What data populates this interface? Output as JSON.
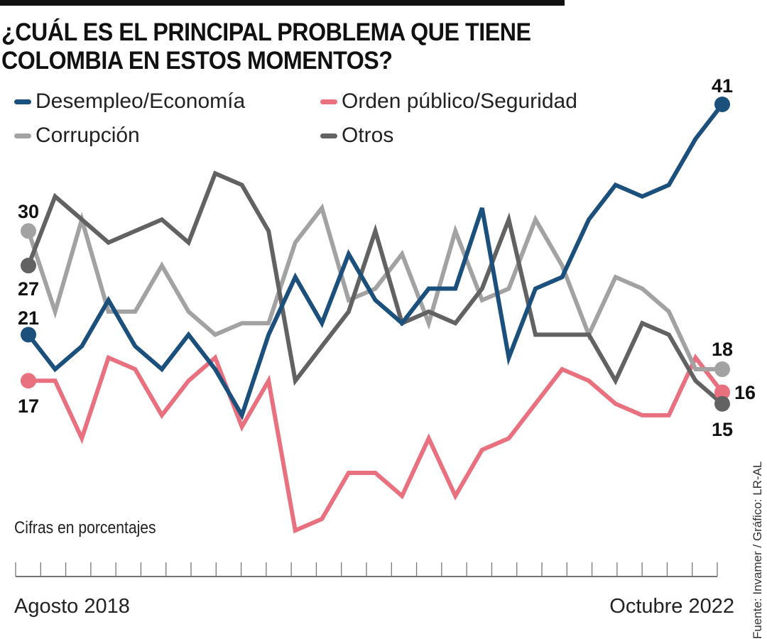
{
  "title_lines": [
    "¿CUÁL ES EL PRINCIPAL PROBLEMA QUE TIENE",
    "COLOMBIA EN ESTOS MOMENTOS?"
  ],
  "note": "Cifras en porcentajes",
  "source": "Fuente: Invamer / Gráfico: LR-AL",
  "chart_data": {
    "type": "line",
    "title": "¿CUÁL ES EL PRINCIPAL PROBLEMA QUE TIENE COLOMBIA EN ESTOS MOMENTOS?",
    "xlabel": "",
    "ylabel": "Cifras en porcentajes",
    "x_start_label": "Agosto 2018",
    "x_end_label": "Octubre 2022",
    "n_points": 27,
    "n_ticks": 29,
    "ylim": [
      0,
      45
    ],
    "grid": false,
    "legend_position": "top-left",
    "series": [
      {
        "name": "Desempleo/Economía",
        "color": "#1b4f7c",
        "values": [
          21,
          18,
          20,
          24,
          20,
          18,
          21,
          18,
          14,
          21,
          26,
          22,
          28,
          24,
          22,
          25,
          25,
          32,
          19,
          25,
          26,
          31,
          34,
          33,
          34,
          38,
          41
        ],
        "start_label": "21",
        "end_label": "41"
      },
      {
        "name": "Orden público/Seguridad",
        "color": "#e8707f",
        "values": [
          17,
          17,
          12,
          19,
          18,
          14,
          17,
          19,
          13,
          17,
          4,
          5,
          9,
          9,
          7,
          12,
          7,
          11,
          12,
          15,
          18,
          17,
          15,
          14,
          14,
          19,
          16
        ],
        "start_label": "17",
        "end_label": "16"
      },
      {
        "name": "Corrupción",
        "color": "#a2a2a2",
        "values": [
          30,
          23,
          31,
          23,
          23,
          27,
          23,
          21,
          22,
          22,
          29,
          32,
          24,
          25,
          28,
          22,
          30,
          24,
          25,
          31,
          27,
          21,
          26,
          25,
          23,
          18,
          18
        ],
        "start_label": "30",
        "end_label": "18"
      },
      {
        "name": "Otros",
        "color": "#626262",
        "values": [
          27,
          33,
          31,
          29,
          30,
          31,
          29,
          35,
          34,
          30,
          17,
          20,
          23,
          30,
          22,
          23,
          22,
          25,
          31,
          21,
          21,
          21,
          17,
          22,
          21,
          17,
          15
        ],
        "start_label": "27",
        "end_label": "15"
      }
    ]
  }
}
